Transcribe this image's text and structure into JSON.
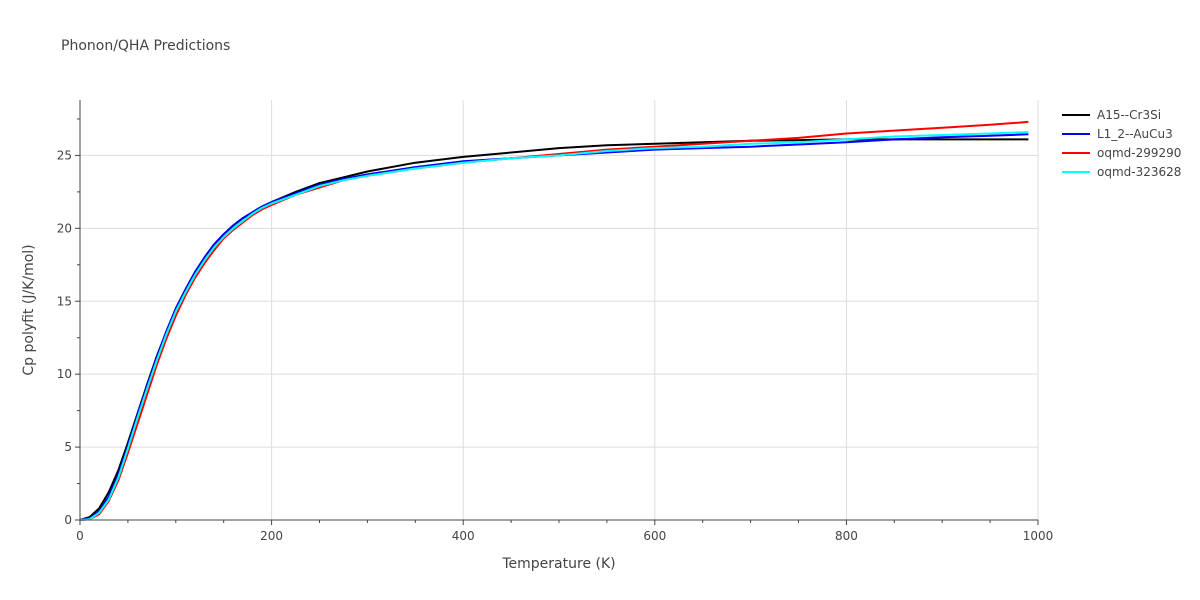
{
  "chart_data": {
    "type": "line",
    "title": "Phonon/QHA Predictions",
    "xlabel": "Temperature (K)",
    "ylabel": "Cp polyfit (J/K/mol)",
    "xlim": [
      0,
      1000
    ],
    "ylim": [
      0,
      28.8
    ],
    "x_ticks": [
      0,
      200,
      400,
      600,
      800,
      1000
    ],
    "y_ticks": [
      0,
      5,
      10,
      15,
      20,
      25
    ],
    "grid": true,
    "legend_position": "top-right",
    "series": [
      {
        "name": "A15--Cr3Si",
        "color": "#000000",
        "x": [
          0,
          10,
          20,
          30,
          40,
          50,
          60,
          70,
          80,
          90,
          100,
          110,
          120,
          130,
          140,
          150,
          160,
          170,
          180,
          190,
          200,
          225,
          250,
          275,
          300,
          350,
          400,
          450,
          500,
          550,
          600,
          650,
          700,
          750,
          800,
          850,
          900,
          950,
          990
        ],
        "y": [
          0,
          0.2,
          0.8,
          1.9,
          3.4,
          5.3,
          7.3,
          9.3,
          11.2,
          12.9,
          14.5,
          15.8,
          17.0,
          18.0,
          18.9,
          19.6,
          20.2,
          20.7,
          21.1,
          21.5,
          21.8,
          22.5,
          23.1,
          23.5,
          23.9,
          24.5,
          24.9,
          25.2,
          25.5,
          25.7,
          25.8,
          25.9,
          26.0,
          26.05,
          26.1,
          26.1,
          26.1,
          26.1,
          26.1
        ]
      },
      {
        "name": "L1_2--AuCu3",
        "color": "#0000ff",
        "x": [
          0,
          10,
          20,
          30,
          40,
          50,
          60,
          70,
          80,
          90,
          100,
          110,
          120,
          130,
          140,
          150,
          160,
          170,
          180,
          190,
          200,
          225,
          250,
          275,
          300,
          350,
          400,
          450,
          500,
          550,
          600,
          650,
          700,
          750,
          800,
          850,
          900,
          950,
          990
        ],
        "y": [
          0,
          0.1,
          0.6,
          1.6,
          3.1,
          5.1,
          7.2,
          9.2,
          11.1,
          12.9,
          14.5,
          15.8,
          17.0,
          18.0,
          18.9,
          19.6,
          20.2,
          20.7,
          21.1,
          21.5,
          21.8,
          22.4,
          23.0,
          23.4,
          23.7,
          24.2,
          24.6,
          24.8,
          25.0,
          25.2,
          25.4,
          25.5,
          25.6,
          25.75,
          25.9,
          26.1,
          26.25,
          26.35,
          26.45
        ]
      },
      {
        "name": "oqmd-299290",
        "color": "#ff0000",
        "x": [
          0,
          10,
          20,
          30,
          40,
          50,
          60,
          70,
          80,
          90,
          100,
          110,
          120,
          130,
          140,
          150,
          160,
          170,
          180,
          190,
          200,
          225,
          250,
          275,
          300,
          350,
          400,
          450,
          500,
          550,
          600,
          650,
          700,
          750,
          800,
          850,
          900,
          950,
          990
        ],
        "y": [
          0,
          0.05,
          0.4,
          1.3,
          2.7,
          4.6,
          6.6,
          8.6,
          10.6,
          12.4,
          14.0,
          15.4,
          16.6,
          17.6,
          18.5,
          19.3,
          19.9,
          20.4,
          20.9,
          21.3,
          21.6,
          22.3,
          22.8,
          23.3,
          23.6,
          24.1,
          24.5,
          24.8,
          25.1,
          25.4,
          25.6,
          25.8,
          26.0,
          26.2,
          26.5,
          26.7,
          26.9,
          27.1,
          27.3
        ]
      },
      {
        "name": "oqmd-323628",
        "color": "#00ffff",
        "x": [
          0,
          10,
          20,
          30,
          40,
          50,
          60,
          70,
          80,
          90,
          100,
          110,
          120,
          130,
          140,
          150,
          160,
          170,
          180,
          190,
          200,
          225,
          250,
          275,
          300,
          350,
          400,
          450,
          500,
          550,
          600,
          650,
          700,
          750,
          800,
          850,
          900,
          950,
          990
        ],
        "y": [
          0,
          0.05,
          0.5,
          1.4,
          2.9,
          4.9,
          7.0,
          9.0,
          10.9,
          12.7,
          14.3,
          15.6,
          16.8,
          17.8,
          18.7,
          19.4,
          20.0,
          20.5,
          21.0,
          21.4,
          21.7,
          22.3,
          22.9,
          23.3,
          23.6,
          24.1,
          24.5,
          24.8,
          25.0,
          25.3,
          25.5,
          25.6,
          25.8,
          25.9,
          26.1,
          26.3,
          26.4,
          26.5,
          26.6
        ]
      }
    ]
  }
}
